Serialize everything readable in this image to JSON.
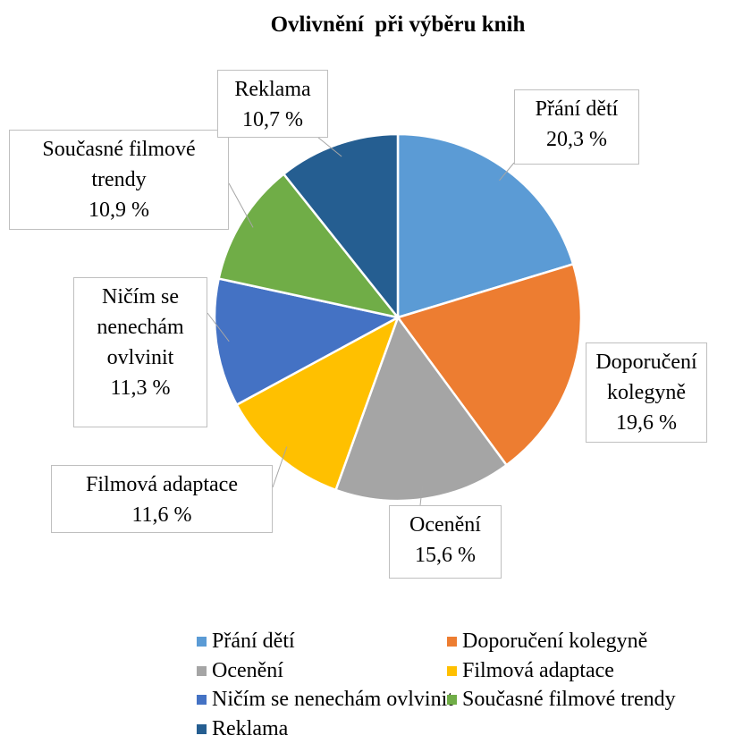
{
  "chart_data": {
    "type": "pie",
    "title": "Ovlivnění  při výběru knih",
    "categories": [
      "Přání dětí",
      "Doporučení kolegyně",
      "Ocenění",
      "Filmová adaptace",
      "Ničím se nenechám ovlvinit",
      "Současné filmové trendy",
      "Reklama"
    ],
    "values": [
      20.3,
      19.6,
      15.6,
      11.6,
      11.3,
      10.9,
      10.7
    ],
    "value_labels": [
      "20,3 %",
      "19,6 %",
      "15,6 %",
      "11,6 %",
      "11,3 %",
      "10,9 %",
      "10,7 %"
    ],
    "colors": [
      "#5b9bd5",
      "#ed7d31",
      "#a5a5a5",
      "#ffc000",
      "#4472c4",
      "#70ad47",
      "#255e91"
    ],
    "legend": "bottom"
  }
}
